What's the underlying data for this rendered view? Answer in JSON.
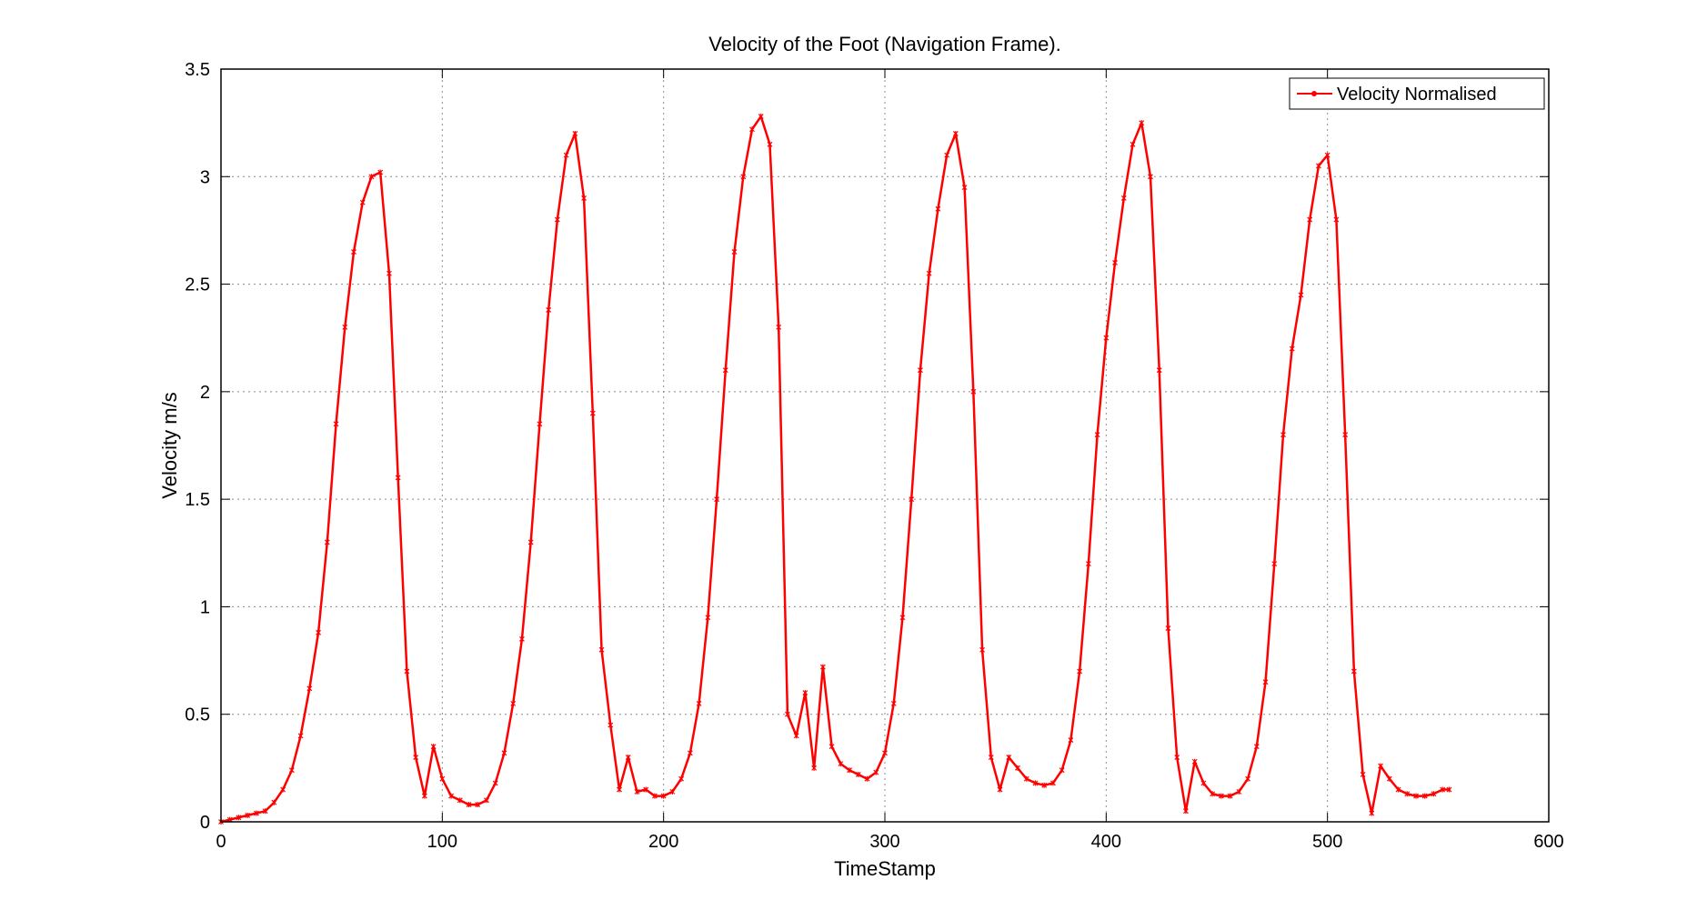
{
  "chart_data": {
    "type": "line",
    "title": "Velocity of the Foot (Navigation Frame).",
    "xlabel": "TimeStamp",
    "ylabel": "Velocity m/s",
    "xlim": [
      0,
      600
    ],
    "ylim": [
      0,
      3.5
    ],
    "xticks": [
      "0",
      "100",
      "200",
      "300",
      "400",
      "500",
      "600"
    ],
    "yticks": [
      "0",
      "0.5",
      "1",
      "1.5",
      "2",
      "2.5",
      "3",
      "3.5"
    ],
    "grid": true,
    "legend": {
      "placement": "top-right",
      "label": "Velocity Normalised"
    },
    "series": [
      {
        "name": "Velocity Normalised",
        "color": "#ff0000",
        "marker": "asterisk",
        "x": [
          0,
          4,
          8,
          12,
          16,
          20,
          24,
          28,
          32,
          36,
          40,
          44,
          48,
          52,
          56,
          60,
          64,
          68,
          72,
          76,
          80,
          84,
          88,
          92,
          96,
          100,
          104,
          108,
          112,
          116,
          120,
          124,
          128,
          132,
          136,
          140,
          144,
          148,
          152,
          156,
          160,
          164,
          168,
          172,
          176,
          180,
          184,
          188,
          192,
          196,
          200,
          204,
          208,
          212,
          216,
          220,
          224,
          228,
          232,
          236,
          240,
          244,
          248,
          252,
          256,
          260,
          264,
          268,
          272,
          276,
          280,
          284,
          288,
          292,
          296,
          300,
          304,
          308,
          312,
          316,
          320,
          324,
          328,
          332,
          336,
          340,
          344,
          348,
          352,
          356,
          360,
          364,
          368,
          372,
          376,
          380,
          384,
          388,
          392,
          396,
          400,
          404,
          408,
          412,
          416,
          420,
          424,
          428,
          432,
          436,
          440,
          444,
          448,
          452,
          456,
          460,
          464,
          468,
          472,
          476,
          480,
          484,
          488,
          492,
          496,
          500,
          504,
          508,
          512,
          516,
          520,
          524,
          528,
          532,
          536,
          540,
          544,
          548,
          552,
          555
        ],
        "y": [
          0.0,
          0.01,
          0.02,
          0.03,
          0.04,
          0.05,
          0.09,
          0.15,
          0.24,
          0.4,
          0.62,
          0.88,
          1.3,
          1.85,
          2.3,
          2.65,
          2.88,
          3.0,
          3.02,
          2.55,
          1.6,
          0.7,
          0.3,
          0.12,
          0.35,
          0.2,
          0.12,
          0.1,
          0.08,
          0.08,
          0.1,
          0.18,
          0.32,
          0.55,
          0.85,
          1.3,
          1.85,
          2.38,
          2.8,
          3.1,
          3.2,
          2.9,
          1.9,
          0.8,
          0.45,
          0.15,
          0.3,
          0.14,
          0.15,
          0.12,
          0.12,
          0.14,
          0.2,
          0.32,
          0.55,
          0.95,
          1.5,
          2.1,
          2.65,
          3.0,
          3.22,
          3.28,
          3.15,
          2.3,
          0.5,
          0.4,
          0.6,
          0.25,
          0.72,
          0.35,
          0.27,
          0.24,
          0.22,
          0.2,
          0.23,
          0.32,
          0.55,
          0.95,
          1.5,
          2.1,
          2.55,
          2.85,
          3.1,
          3.2,
          2.95,
          2.0,
          0.8,
          0.3,
          0.15,
          0.3,
          0.25,
          0.2,
          0.18,
          0.17,
          0.18,
          0.24,
          0.38,
          0.7,
          1.2,
          1.8,
          2.25,
          2.6,
          2.9,
          3.15,
          3.25,
          3.0,
          2.1,
          0.9,
          0.3,
          0.05,
          0.28,
          0.18,
          0.13,
          0.12,
          0.12,
          0.14,
          0.2,
          0.35,
          0.65,
          1.2,
          1.8,
          2.2,
          2.45,
          2.8,
          3.05,
          3.1,
          2.8,
          1.8,
          0.7,
          0.22,
          0.04,
          0.26,
          0.2,
          0.15,
          0.13,
          0.12,
          0.12,
          0.13,
          0.15,
          0.15
        ]
      }
    ]
  }
}
